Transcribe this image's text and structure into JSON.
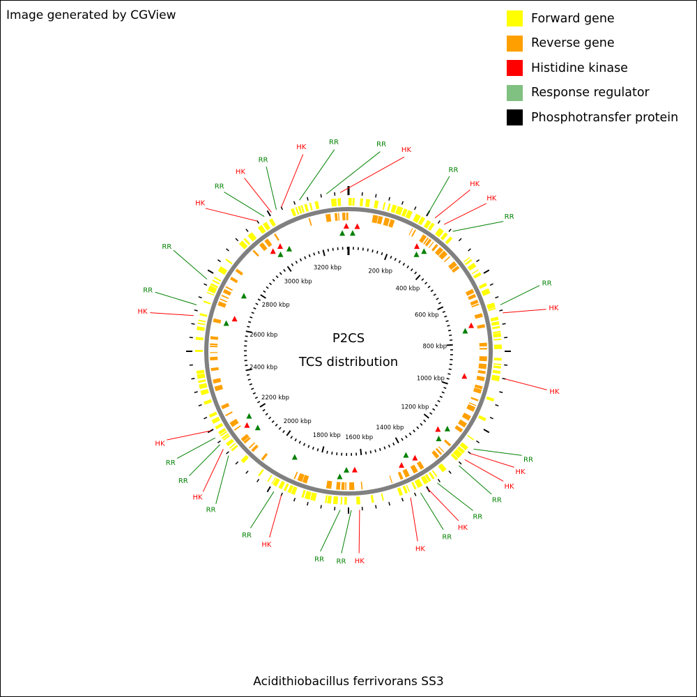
{
  "credit": "Image generated by CGView",
  "organism": "Acidithiobacillus ferrivorans SS3",
  "center_title": "P2CS",
  "center_subtitle": "TCS distribution",
  "legend": [
    {
      "label": "Forward gene",
      "color": "#ffff00"
    },
    {
      "label": "Reverse gene",
      "color": "#ffa000"
    },
    {
      "label": "Histidine kinase",
      "color": "#ff0000"
    },
    {
      "label": "Response regulator",
      "color": "#80c080"
    },
    {
      "label": "Phosphotransfer protein",
      "color": "#000000"
    }
  ],
  "colors": {
    "hk": "#ff0000",
    "rr": "#008000",
    "hk_marker": "#ff0000",
    "rr_marker": "#008000",
    "backbone": "#808080"
  },
  "genome": {
    "length_kbp": 3330,
    "kbp_labels": [
      {
        "pos": 200,
        "text": "200 kbp"
      },
      {
        "pos": 400,
        "text": "400 kbp"
      },
      {
        "pos": 600,
        "text": "600 kbp"
      },
      {
        "pos": 800,
        "text": "800 kbp"
      },
      {
        "pos": 1000,
        "text": "1000 kbp"
      },
      {
        "pos": 1200,
        "text": "1200 kbp"
      },
      {
        "pos": 1400,
        "text": "1400 kbp"
      },
      {
        "pos": 1600,
        "text": "1600 kbp"
      },
      {
        "pos": 1800,
        "text": "1800 kbp"
      },
      {
        "pos": 2000,
        "text": "2000 kbp"
      },
      {
        "pos": 2200,
        "text": "2200 kbp"
      },
      {
        "pos": 2400,
        "text": "2400 kbp"
      },
      {
        "pos": 2600,
        "text": "2600 kbp"
      },
      {
        "pos": 2800,
        "text": "2800 kbp"
      },
      {
        "pos": 3000,
        "text": "3000 kbp"
      },
      {
        "pos": 3200,
        "text": "3200 kbp"
      }
    ]
  },
  "callouts": [
    {
      "text": "HK",
      "type": "hk",
      "angle": -25,
      "label_angle": -13
    },
    {
      "text": "RR",
      "type": "rr",
      "angle": -18,
      "label_angle": -4
    },
    {
      "text": "RR",
      "type": "rr",
      "angle": -8,
      "label_angle": 9
    },
    {
      "text": "HK",
      "type": "hk",
      "angle": -3,
      "label_angle": 16
    },
    {
      "text": "RR",
      "type": "rr",
      "angle": 30,
      "label_angle": 30
    },
    {
      "text": "HK",
      "type": "hk",
      "angle": 33,
      "label_angle": 37
    },
    {
      "text": "HK",
      "type": "hk",
      "angle": 37,
      "label_angle": 43
    },
    {
      "text": "RR",
      "type": "rr",
      "angle": 41,
      "label_angle": 50
    },
    {
      "text": "RR",
      "type": "rr",
      "angle": 73,
      "label_angle": 71
    },
    {
      "text": "HK",
      "type": "hk",
      "angle": 76,
      "label_angle": 78
    },
    {
      "text": "HK",
      "type": "hk",
      "angle": 100,
      "label_angle": 101
    },
    {
      "text": "RR",
      "type": "rr",
      "angle": 128,
      "label_angle": 121
    },
    {
      "text": "HK",
      "type": "hk",
      "angle": 130,
      "label_angle": 125
    },
    {
      "text": "HK",
      "type": "hk",
      "angle": 133,
      "label_angle": 130
    },
    {
      "text": "RR",
      "type": "rr",
      "angle": 136,
      "label_angle": 135
    },
    {
      "text": "RR",
      "type": "rr",
      "angle": 146,
      "label_angle": 142
    },
    {
      "text": "HK",
      "type": "hk",
      "angle": 150,
      "label_angle": 147
    },
    {
      "text": "RR",
      "type": "rr",
      "angle": 153,
      "label_angle": 152
    },
    {
      "text": "HK",
      "type": "hk",
      "angle": 157,
      "label_angle": 160
    },
    {
      "text": "HK",
      "type": "hk",
      "angle": 176,
      "label_angle": 177
    },
    {
      "text": "RR",
      "type": "rr",
      "angle": 179,
      "label_angle": 182
    },
    {
      "text": "RR",
      "type": "rr",
      "angle": 183,
      "label_angle": 188
    },
    {
      "text": "HK",
      "type": "hk",
      "angle": 205,
      "label_angle": 203
    },
    {
      "text": "RR",
      "type": "rr",
      "angle": 208,
      "label_angle": 209
    },
    {
      "text": "RR",
      "type": "rr",
      "angle": 229,
      "label_angle": 221
    },
    {
      "text": "HK",
      "type": "hk",
      "angle": 232,
      "label_angle": 226
    },
    {
      "text": "RR",
      "type": "rr",
      "angle": 234,
      "label_angle": 232
    },
    {
      "text": "RR",
      "type": "rr",
      "angle": 237,
      "label_angle": 238
    },
    {
      "text": "HK",
      "type": "hk",
      "angle": 240,
      "label_angle": 244
    },
    {
      "text": "HK",
      "type": "hk",
      "angle": 283,
      "label_angle": 281
    },
    {
      "text": "RR",
      "type": "rr",
      "angle": 287,
      "label_angle": 287
    },
    {
      "text": "RR",
      "type": "rr",
      "angle": 297,
      "label_angle": 300
    },
    {
      "text": "HK",
      "type": "hk",
      "angle": 325,
      "label_angle": 315
    },
    {
      "text": "RR",
      "type": "rr",
      "angle": 328,
      "label_angle": 322
    },
    {
      "text": "HK",
      "type": "hk",
      "angle": 331,
      "label_angle": 329
    },
    {
      "text": "RR",
      "type": "rr",
      "angle": 333,
      "label_angle": 336
    }
  ],
  "markers": [
    {
      "type": "hk",
      "ring": "outer",
      "angle": 4
    },
    {
      "type": "rr",
      "ring": "inner",
      "angle": 2
    },
    {
      "type": "hk",
      "ring": "outer",
      "angle": -1
    },
    {
      "type": "rr",
      "ring": "inner",
      "angle": -3
    },
    {
      "type": "hk",
      "ring": "outer",
      "angle": 33
    },
    {
      "type": "rr",
      "ring": "inner",
      "angle": 35
    },
    {
      "type": "rr",
      "ring": "outer",
      "angle": 37
    },
    {
      "type": "hk",
      "ring": "outer",
      "angle": 78
    },
    {
      "type": "rr",
      "ring": "inner",
      "angle": 80
    },
    {
      "type": "hk",
      "ring": "inner",
      "angle": 102
    },
    {
      "type": "rr",
      "ring": "outer",
      "angle": 128
    },
    {
      "type": "hk",
      "ring": "inner",
      "angle": 131
    },
    {
      "type": "rr",
      "ring": "outer",
      "angle": 134
    },
    {
      "type": "hk",
      "ring": "outer",
      "angle": 148
    },
    {
      "type": "rr",
      "ring": "inner",
      "angle": 151
    },
    {
      "type": "hk",
      "ring": "outer",
      "angle": 155
    },
    {
      "type": "hk",
      "ring": "inner",
      "angle": 177
    },
    {
      "type": "rr",
      "ring": "inner",
      "angle": 181
    },
    {
      "type": "rr",
      "ring": "outer",
      "angle": 184
    },
    {
      "type": "rr",
      "ring": "inner",
      "angle": 207
    },
    {
      "type": "rr",
      "ring": "inner",
      "angle": 230
    },
    {
      "type": "hk",
      "ring": "outer",
      "angle": 234
    },
    {
      "type": "rr",
      "ring": "inner",
      "angle": 237
    },
    {
      "type": "rr",
      "ring": "outer",
      "angle": 283
    },
    {
      "type": "hk",
      "ring": "inner",
      "angle": 286
    },
    {
      "type": "rr",
      "ring": "inner",
      "angle": 298
    },
    {
      "type": "hk",
      "ring": "outer",
      "angle": 323
    },
    {
      "type": "rr",
      "ring": "inner",
      "angle": 325
    },
    {
      "type": "hk",
      "ring": "outer",
      "angle": 327
    },
    {
      "type": "rr",
      "ring": "inner",
      "angle": 330
    }
  ]
}
